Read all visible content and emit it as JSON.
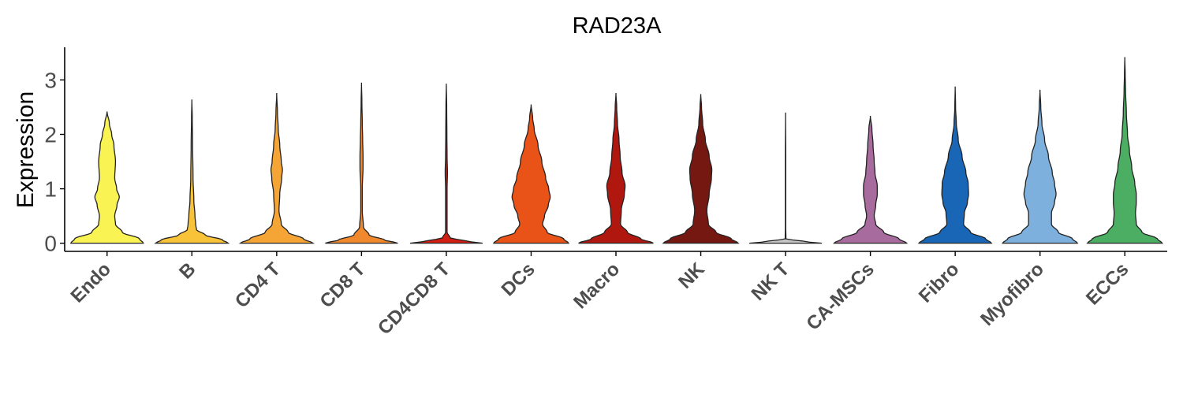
{
  "chart_data": {
    "type": "violin",
    "title": "RAD23A",
    "ylabel": "Expression",
    "xlabel": "",
    "ylim": [
      -0.15,
      3.6
    ],
    "yticks": [
      0,
      1,
      2,
      3
    ],
    "grid": false,
    "legend": "none",
    "categories": [
      "Endo",
      "B",
      "CD4 T",
      "CD8 T",
      "CD4CD8 T",
      "DCs",
      "Macro",
      "NK",
      "NK T",
      "CA-MSCs",
      "Fibro",
      "Myofibro",
      "ECCs"
    ],
    "series": [
      {
        "category": "Endo",
        "color": "#F9F353",
        "max": 2.42,
        "profile": [
          [
            0,
            0.95
          ],
          [
            0.08,
            0.85
          ],
          [
            0.2,
            0.4
          ],
          [
            0.35,
            0.22
          ],
          [
            0.5,
            0.2
          ],
          [
            0.7,
            0.26
          ],
          [
            0.85,
            0.32
          ],
          [
            1.0,
            0.25
          ],
          [
            1.2,
            0.2
          ],
          [
            1.5,
            0.22
          ],
          [
            1.8,
            0.18
          ],
          [
            2.0,
            0.12
          ],
          [
            2.2,
            0.06
          ],
          [
            2.42,
            0
          ]
        ]
      },
      {
        "category": "B",
        "color": "#F8C338",
        "max": 2.64,
        "profile": [
          [
            0,
            0.95
          ],
          [
            0.06,
            0.8
          ],
          [
            0.15,
            0.35
          ],
          [
            0.25,
            0.12
          ],
          [
            0.35,
            0.1
          ],
          [
            0.5,
            0.08
          ],
          [
            0.8,
            0.05
          ],
          [
            1.2,
            0.03
          ],
          [
            1.8,
            0.02
          ],
          [
            2.3,
            0.01
          ],
          [
            2.64,
            0
          ]
        ]
      },
      {
        "category": "CD4 T",
        "color": "#F5A535",
        "max": 2.76,
        "profile": [
          [
            0,
            0.95
          ],
          [
            0.08,
            0.7
          ],
          [
            0.2,
            0.3
          ],
          [
            0.35,
            0.12
          ],
          [
            0.6,
            0.06
          ],
          [
            0.9,
            0.08
          ],
          [
            1.2,
            0.13
          ],
          [
            1.35,
            0.15
          ],
          [
            1.5,
            0.12
          ],
          [
            1.8,
            0.08
          ],
          [
            2.1,
            0.04
          ],
          [
            2.4,
            0.02
          ],
          [
            2.76,
            0
          ]
        ]
      },
      {
        "category": "CD8 T",
        "color": "#F0892D",
        "max": 2.95,
        "profile": [
          [
            0,
            0.95
          ],
          [
            0.06,
            0.6
          ],
          [
            0.15,
            0.2
          ],
          [
            0.3,
            0.05
          ],
          [
            0.6,
            0.02
          ],
          [
            1.0,
            0.02
          ],
          [
            1.4,
            0.04
          ],
          [
            1.6,
            0.04
          ],
          [
            1.9,
            0.03
          ],
          [
            2.2,
            0.02
          ],
          [
            2.6,
            0.01
          ],
          [
            2.95,
            0
          ]
        ]
      },
      {
        "category": "CD4CD8 T",
        "color": "#D21F14",
        "max": 2.93,
        "profile": [
          [
            0,
            0.95
          ],
          [
            0.04,
            0.5
          ],
          [
            0.1,
            0.1
          ],
          [
            0.2,
            0.02
          ],
          [
            1.0,
            0.02
          ],
          [
            1.3,
            0.03
          ],
          [
            1.6,
            0.02
          ],
          [
            2.0,
            0.015
          ],
          [
            2.5,
            0.01
          ],
          [
            2.93,
            0
          ]
        ]
      },
      {
        "category": "DCs",
        "color": "#E95318",
        "max": 2.55,
        "profile": [
          [
            0,
            0.98
          ],
          [
            0.08,
            0.85
          ],
          [
            0.2,
            0.42
          ],
          [
            0.35,
            0.3
          ],
          [
            0.5,
            0.35
          ],
          [
            0.7,
            0.45
          ],
          [
            0.85,
            0.5
          ],
          [
            1.0,
            0.46
          ],
          [
            1.2,
            0.38
          ],
          [
            1.5,
            0.28
          ],
          [
            1.8,
            0.18
          ],
          [
            2.1,
            0.08
          ],
          [
            2.3,
            0.04
          ],
          [
            2.55,
            0
          ]
        ]
      },
      {
        "category": "Macro",
        "color": "#B0170F",
        "max": 2.76,
        "profile": [
          [
            0,
            0.98
          ],
          [
            0.08,
            0.65
          ],
          [
            0.2,
            0.3
          ],
          [
            0.35,
            0.12
          ],
          [
            0.6,
            0.14
          ],
          [
            0.9,
            0.22
          ],
          [
            1.05,
            0.24
          ],
          [
            1.3,
            0.16
          ],
          [
            1.6,
            0.11
          ],
          [
            1.9,
            0.08
          ],
          [
            2.2,
            0.04
          ],
          [
            2.5,
            0.02
          ],
          [
            2.76,
            0
          ]
        ]
      },
      {
        "category": "NK",
        "color": "#761812",
        "max": 2.74,
        "profile": [
          [
            0,
            0.98
          ],
          [
            0.08,
            0.8
          ],
          [
            0.2,
            0.4
          ],
          [
            0.35,
            0.2
          ],
          [
            0.6,
            0.16
          ],
          [
            0.9,
            0.22
          ],
          [
            1.2,
            0.28
          ],
          [
            1.35,
            0.29
          ],
          [
            1.6,
            0.22
          ],
          [
            1.9,
            0.12
          ],
          [
            2.2,
            0.05
          ],
          [
            2.5,
            0.02
          ],
          [
            2.74,
            0
          ]
        ]
      },
      {
        "category": "NK T",
        "color": "#C6C6C6",
        "max": 2.4,
        "profile": [
          [
            0,
            0.95
          ],
          [
            0.03,
            0.5
          ],
          [
            0.08,
            0.01
          ],
          [
            0.3,
            0.005
          ],
          [
            1.0,
            0.005
          ],
          [
            1.6,
            0.005
          ],
          [
            2.4,
            0
          ]
        ]
      },
      {
        "category": "CA-MSCs",
        "color": "#A76B9E",
        "max": 2.34,
        "profile": [
          [
            0,
            0.95
          ],
          [
            0.08,
            0.75
          ],
          [
            0.2,
            0.35
          ],
          [
            0.35,
            0.14
          ],
          [
            0.5,
            0.1
          ],
          [
            0.7,
            0.14
          ],
          [
            0.9,
            0.18
          ],
          [
            1.05,
            0.18
          ],
          [
            1.3,
            0.12
          ],
          [
            1.5,
            0.1
          ],
          [
            1.8,
            0.07
          ],
          [
            2.1,
            0.04
          ],
          [
            2.34,
            0
          ]
        ]
      },
      {
        "category": "Fibro",
        "color": "#1866B5",
        "max": 2.88,
        "profile": [
          [
            0,
            0.95
          ],
          [
            0.08,
            0.8
          ],
          [
            0.2,
            0.4
          ],
          [
            0.35,
            0.22
          ],
          [
            0.55,
            0.24
          ],
          [
            0.75,
            0.32
          ],
          [
            0.9,
            0.35
          ],
          [
            1.1,
            0.34
          ],
          [
            1.3,
            0.28
          ],
          [
            1.6,
            0.18
          ],
          [
            1.9,
            0.08
          ],
          [
            2.2,
            0.03
          ],
          [
            2.5,
            0.01
          ],
          [
            2.88,
            0
          ]
        ]
      },
      {
        "category": "Myofibro",
        "color": "#7EB0DE",
        "max": 2.82,
        "profile": [
          [
            0,
            0.98
          ],
          [
            0.08,
            0.85
          ],
          [
            0.2,
            0.48
          ],
          [
            0.35,
            0.3
          ],
          [
            0.55,
            0.3
          ],
          [
            0.75,
            0.38
          ],
          [
            0.9,
            0.42
          ],
          [
            1.1,
            0.38
          ],
          [
            1.3,
            0.32
          ],
          [
            1.6,
            0.22
          ],
          [
            1.9,
            0.12
          ],
          [
            2.2,
            0.05
          ],
          [
            2.5,
            0.02
          ],
          [
            2.82,
            0
          ]
        ]
      },
      {
        "category": "ECCs",
        "color": "#4BAE62",
        "max": 3.42,
        "profile": [
          [
            0,
            0.98
          ],
          [
            0.08,
            0.85
          ],
          [
            0.2,
            0.45
          ],
          [
            0.35,
            0.3
          ],
          [
            0.55,
            0.28
          ],
          [
            0.75,
            0.3
          ],
          [
            0.9,
            0.3
          ],
          [
            1.1,
            0.26
          ],
          [
            1.4,
            0.18
          ],
          [
            1.7,
            0.12
          ],
          [
            2.0,
            0.07
          ],
          [
            2.4,
            0.04
          ],
          [
            2.8,
            0.02
          ],
          [
            3.1,
            0.01
          ],
          [
            3.42,
            0
          ]
        ]
      }
    ]
  }
}
